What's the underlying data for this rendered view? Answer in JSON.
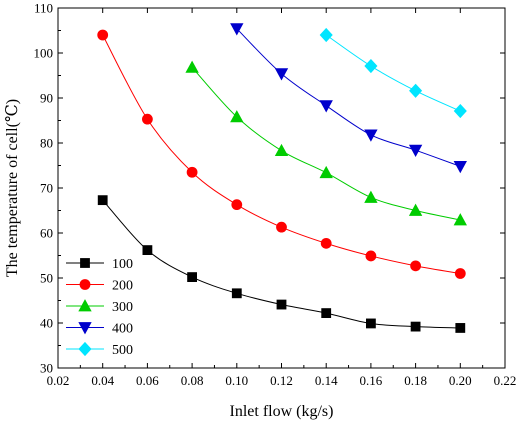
{
  "chart_data": {
    "type": "line",
    "title": "",
    "xlabel": "Inlet flow (kg/s)",
    "ylabel": "The temperature of cell(℃)",
    "xlim": [
      0.02,
      0.22
    ],
    "ylim": [
      30,
      110
    ],
    "x_ticks": [
      "0.02",
      "0.04",
      "0.06",
      "0.08",
      "0.10",
      "0.12",
      "0.14",
      "0.16",
      "0.18",
      "0.20",
      "0.22"
    ],
    "y_ticks": [
      "30",
      "40",
      "50",
      "60",
      "70",
      "80",
      "90",
      "100",
      "110"
    ],
    "grid": false,
    "legend_position": "bottom-left",
    "series": [
      {
        "name": "100",
        "color": "#000000",
        "marker": "square",
        "x": [
          0.04,
          0.06,
          0.08,
          0.1,
          0.12,
          0.14,
          0.16,
          0.18,
          0.2
        ],
        "y": [
          67.3,
          56.2,
          50.2,
          46.6,
          44.1,
          42.2,
          39.9,
          39.2,
          38.9
        ]
      },
      {
        "name": "200",
        "color": "#ff0000",
        "marker": "circle",
        "x": [
          0.04,
          0.06,
          0.08,
          0.1,
          0.12,
          0.14,
          0.16,
          0.18,
          0.2
        ],
        "y": [
          104.0,
          85.3,
          73.5,
          66.3,
          61.3,
          57.7,
          54.9,
          52.7,
          51.0
        ]
      },
      {
        "name": "300",
        "color": "#00cc00",
        "marker": "triangle-up",
        "x": [
          0.08,
          0.1,
          0.12,
          0.14,
          0.16,
          0.18,
          0.2
        ],
        "y": [
          96.8,
          85.8,
          78.3,
          73.4,
          67.9,
          65.0,
          62.9
        ]
      },
      {
        "name": "400",
        "color": "#0000cc",
        "marker": "triangle-down",
        "x": [
          0.1,
          0.12,
          0.14,
          0.16,
          0.18,
          0.2
        ],
        "y": [
          105.4,
          95.4,
          88.3,
          81.8,
          78.4,
          74.8
        ]
      },
      {
        "name": "500",
        "color": "#00e5ff",
        "marker": "diamond",
        "x": [
          0.14,
          0.16,
          0.18,
          0.2
        ],
        "y": [
          104.0,
          97.1,
          91.6,
          87.1
        ]
      }
    ]
  }
}
